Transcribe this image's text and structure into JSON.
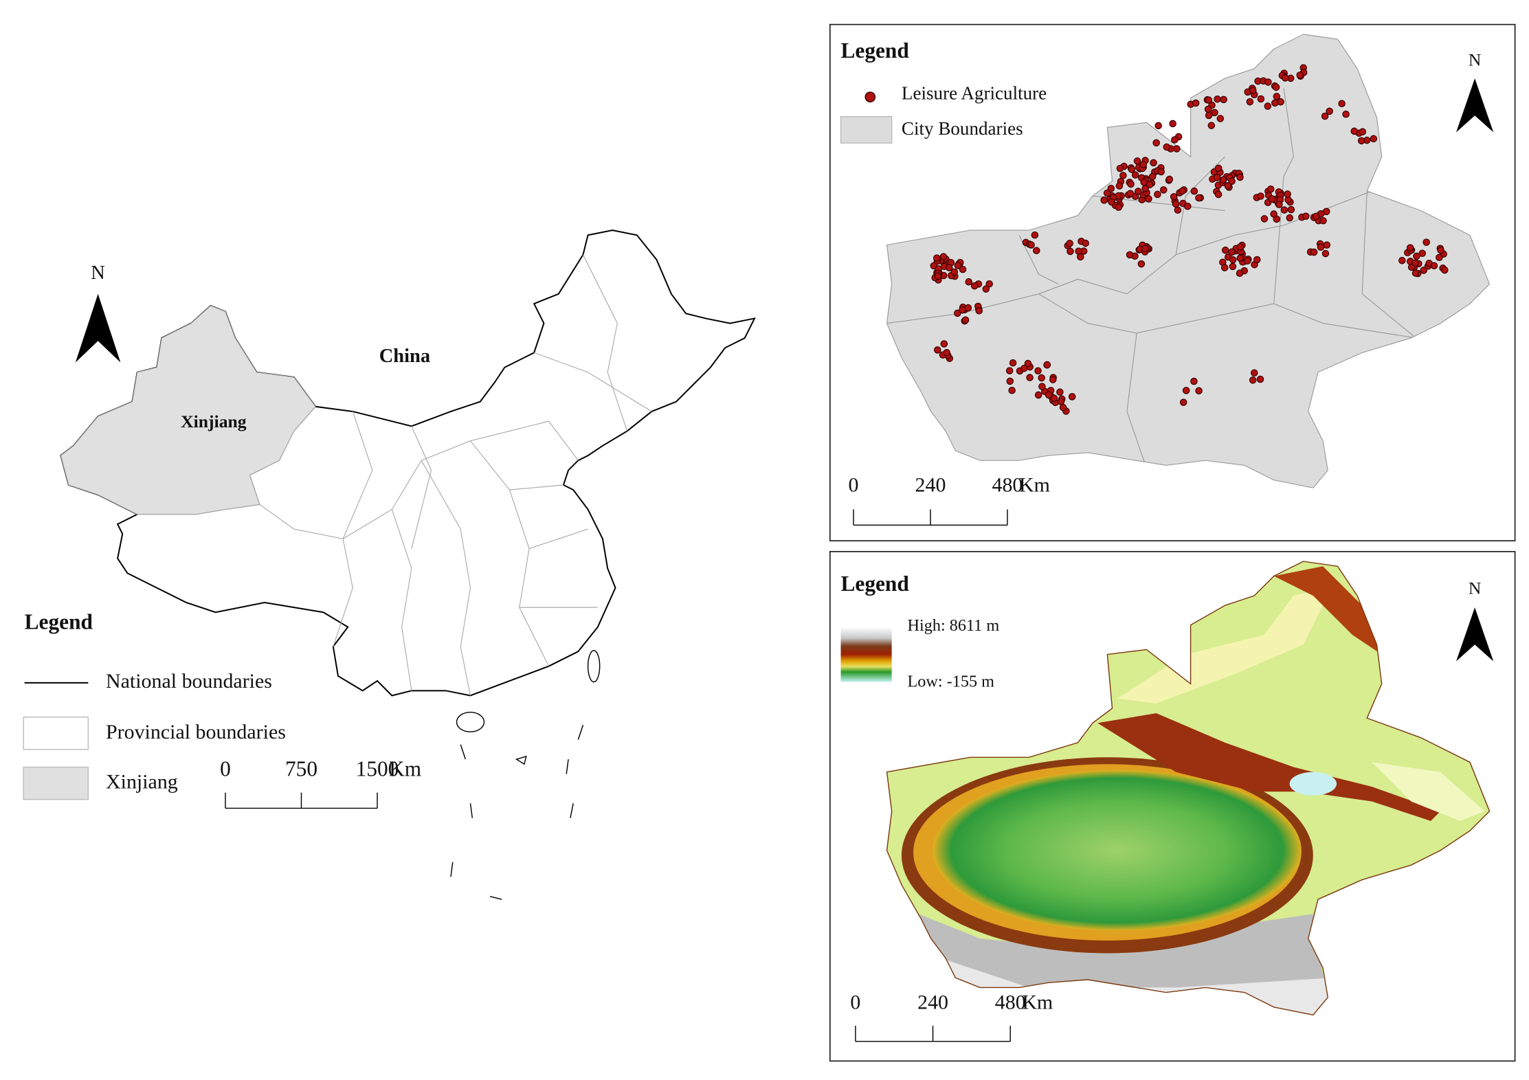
{
  "left_map": {
    "title": "China",
    "region_label": "Xinjiang",
    "north": "N",
    "legend": {
      "title": "Legend",
      "items": [
        "National boundaries",
        "Provincial boundaries",
        "Xinjiang"
      ]
    },
    "scale": {
      "ticks": [
        0,
        750,
        1500
      ],
      "unit": "Km"
    }
  },
  "top_right_map": {
    "north": "N",
    "legend": {
      "title": "Legend",
      "items": [
        "Leisure Agriculture",
        "City Boundaries"
      ]
    },
    "scale": {
      "ticks": [
        0,
        240,
        480
      ],
      "unit": "Km"
    }
  },
  "bottom_right_map": {
    "north": "N",
    "legend": {
      "title": "Legend",
      "high": "High: 8611 m",
      "low": "Low: -155 m"
    },
    "scale": {
      "ticks": [
        0,
        240,
        480
      ],
      "unit": "Km"
    }
  }
}
